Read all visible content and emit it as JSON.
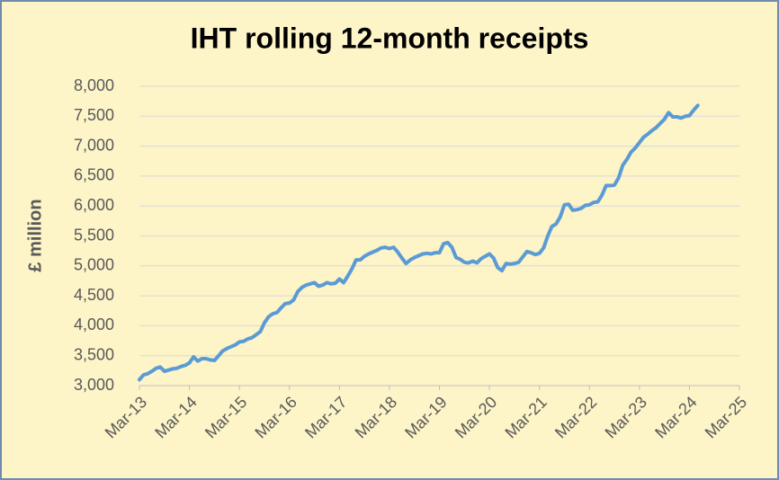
{
  "chart_data": {
    "type": "line",
    "title": "IHT rolling 12-month receipts",
    "y_label": "£ million",
    "categories": [
      "Mar-13",
      null,
      null,
      null,
      null,
      null,
      null,
      null,
      null,
      null,
      null,
      null,
      "Mar-14",
      null,
      null,
      null,
      null,
      null,
      null,
      null,
      null,
      null,
      null,
      null,
      "Mar-15",
      null,
      null,
      null,
      null,
      null,
      null,
      null,
      null,
      null,
      null,
      null,
      "Mar-16",
      null,
      null,
      null,
      null,
      null,
      null,
      null,
      null,
      null,
      null,
      null,
      "Mar-17",
      null,
      null,
      null,
      null,
      null,
      null,
      null,
      null,
      null,
      null,
      null,
      "Mar-18",
      null,
      null,
      null,
      null,
      null,
      null,
      null,
      null,
      null,
      null,
      null,
      "Mar-19",
      null,
      null,
      null,
      null,
      null,
      null,
      null,
      null,
      null,
      null,
      null,
      "Mar-20",
      null,
      null,
      null,
      null,
      null,
      null,
      null,
      null,
      null,
      null,
      null,
      "Mar-21",
      null,
      null,
      null,
      null,
      null,
      null,
      null,
      null,
      null,
      null,
      null,
      "Mar-22",
      null,
      null,
      null,
      null,
      null,
      null,
      null,
      null,
      null,
      null,
      null,
      "Mar-23",
      null,
      null,
      null,
      null,
      null,
      null,
      null,
      null,
      null,
      null,
      null,
      "Mar-24",
      null,
      null,
      null,
      null,
      null,
      null,
      null,
      null,
      null,
      null,
      null,
      "Mar-25"
    ],
    "values": [
      3100,
      3180,
      3200,
      3240,
      3290,
      3310,
      3240,
      3260,
      3280,
      3290,
      3320,
      3340,
      3380,
      3480,
      3410,
      3450,
      3450,
      3430,
      3420,
      3500,
      3580,
      3620,
      3650,
      3680,
      3730,
      3740,
      3780,
      3800,
      3850,
      3900,
      4050,
      4150,
      4200,
      4220,
      4300,
      4370,
      4380,
      4430,
      4570,
      4640,
      4680,
      4700,
      4720,
      4660,
      4680,
      4720,
      4700,
      4710,
      4780,
      4720,
      4830,
      4950,
      5100,
      5100,
      5160,
      5200,
      5230,
      5260,
      5300,
      5310,
      5290,
      5310,
      5230,
      5130,
      5040,
      5100,
      5140,
      5170,
      5200,
      5210,
      5200,
      5220,
      5220,
      5370,
      5390,
      5310,
      5140,
      5110,
      5060,
      5050,
      5080,
      5050,
      5120,
      5160,
      5200,
      5130,
      4970,
      4920,
      5040,
      5030,
      5040,
      5060,
      5150,
      5240,
      5220,
      5190,
      5210,
      5300,
      5500,
      5660,
      5700,
      5820,
      6020,
      6030,
      5930,
      5940,
      5960,
      6010,
      6020,
      6060,
      6070,
      6180,
      6340,
      6340,
      6350,
      6470,
      6680,
      6780,
      6900,
      6970,
      7060,
      7150,
      7200,
      7260,
      7310,
      7380,
      7450,
      7560,
      7490,
      7490,
      7470,
      7500,
      7510,
      7600,
      7680,
      null,
      null,
      null,
      null,
      null,
      null,
      null,
      null,
      null,
      null
    ],
    "color": "#5b9bd5",
    "ylim": [
      3000,
      8000
    ],
    "yticks": [
      {
        "value": 3000,
        "label": "3,000"
      },
      {
        "value": 3500,
        "label": "3,500"
      },
      {
        "value": 4000,
        "label": "4,000"
      },
      {
        "value": 4500,
        "label": "4,500"
      },
      {
        "value": 5000,
        "label": "5,000"
      },
      {
        "value": 5500,
        "label": "5,500"
      },
      {
        "value": 6000,
        "label": "6,000"
      },
      {
        "value": 6500,
        "label": "6,500"
      },
      {
        "value": 7000,
        "label": "7,000"
      },
      {
        "value": 7500,
        "label": "7,500"
      },
      {
        "value": 8000,
        "label": "8,000"
      }
    ],
    "grid": true
  }
}
